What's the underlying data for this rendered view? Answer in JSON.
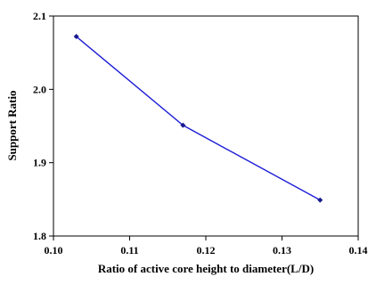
{
  "chart_data": {
    "type": "line",
    "xlabel": "Ratio of active core height to diameter(L/D)",
    "ylabel": "Support Ratio",
    "xlim": [
      0.1,
      0.14
    ],
    "ylim": [
      1.8,
      2.1
    ],
    "x_ticks": [
      "0.10",
      "0.11",
      "0.12",
      "0.13",
      "0.14"
    ],
    "y_ticks": [
      "1.8",
      "1.9",
      "2.0",
      "2.1"
    ],
    "grid": false,
    "legend": "none",
    "series": [
      {
        "x": [
          0.103,
          0.117,
          0.135
        ],
        "y": [
          2.072,
          1.951,
          1.849
        ],
        "color": "#1f1fd6",
        "marker": "diamond"
      }
    ]
  }
}
